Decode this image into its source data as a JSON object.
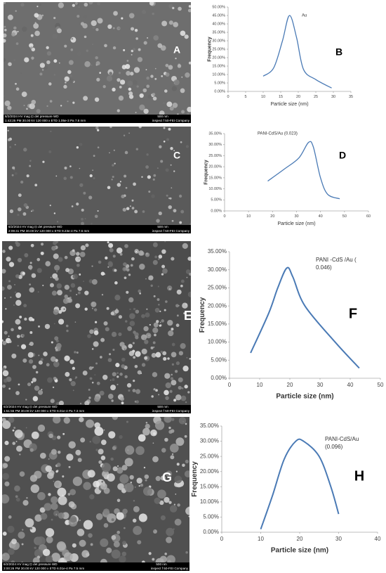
{
  "images": [
    {
      "label": "A",
      "info": [
        "6/2/2024   HV   mag ⊡  det  pressure  WD",
        "1:43:25 PM 30.00 kV 120 000 x ETD 1.05e-3 Pa 7.8 mm"
      ],
      "scale": "500 nm",
      "company": "inspect f 50-FEI Company"
    },
    {
      "label": "C",
      "info": [
        "6/2/2024   HV   mag ⊡  det  pressure  WD",
        "2:09:41 PM 30.00 kV 120 000 x ETD 9.23e-4 Pa 7.6 mm"
      ],
      "scale": "500 nm",
      "company": "inspect f 50-FEI Company"
    },
    {
      "label": "E",
      "info": [
        "6/2/2024   HV   mag ⊡  det  pressure  WD",
        "1:51:55 PM 30.00 kV 120 000 x ETD 6.01e-4 Pa 7.3 mm"
      ],
      "scale": "500 nm",
      "company": "inspect f 50-FEI Company"
    },
    {
      "label": "G",
      "info": [
        "6/2/2024   HV   mag ⊡  det  pressure  WD",
        "3:00:26 PM 30.00 kV 120 000 x ETD 6.01e-4 Pa 7.5 mm"
      ],
      "scale": "500 nm",
      "company": "inspect f 50-FEI Company"
    }
  ],
  "chart_data": [
    {
      "type": "line",
      "panel_label": "B",
      "annotation": [
        "Au"
      ],
      "xlabel": "Particle size (nm)",
      "ylabel": "Frequency",
      "color": "#4a7ab5",
      "x": [
        10,
        13,
        15.5,
        17.5,
        19.5,
        21.5,
        25,
        29.5
      ],
      "values": [
        9,
        14,
        30,
        45,
        32,
        13,
        7,
        2
      ],
      "xlim": [
        0,
        35
      ],
      "xticks": [
        0,
        5,
        10,
        15,
        20,
        25,
        30,
        35
      ],
      "ylim": [
        0,
        50
      ],
      "yticks": [
        {
          "value": 0,
          "label": "0.00%"
        },
        {
          "value": 5,
          "label": "5.00%"
        },
        {
          "value": 10,
          "label": "10.00%"
        },
        {
          "value": 15,
          "label": "15.00%"
        },
        {
          "value": 20,
          "label": "20.00%"
        },
        {
          "value": 25,
          "label": "25.00%"
        },
        {
          "value": 30,
          "label": "30.00%"
        },
        {
          "value": 35,
          "label": "35.00%"
        },
        {
          "value": 40,
          "label": "40.00%"
        },
        {
          "value": 45,
          "label": "45.00%"
        },
        {
          "value": 50,
          "label": "50.00%"
        }
      ]
    },
    {
      "type": "line",
      "panel_label": "D",
      "annotation": [
        "PANI-CdS/Au (0.023)"
      ],
      "xlabel": "Particle size (nm)",
      "ylabel": "Frequency",
      "color": "#4a7ab5",
      "x": [
        18,
        25,
        31,
        35,
        37,
        40,
        43,
        48
      ],
      "values": [
        13.5,
        19,
        24,
        31,
        29,
        15,
        7.5,
        5.5
      ],
      "xlim": [
        0,
        60
      ],
      "xticks": [
        0,
        10,
        20,
        30,
        40,
        50,
        60
      ],
      "ylim": [
        0,
        35
      ],
      "yticks": [
        {
          "value": 0,
          "label": "0.00%"
        },
        {
          "value": 5,
          "label": "5.00%"
        },
        {
          "value": 10,
          "label": "10.00%"
        },
        {
          "value": 15,
          "label": "15.00%"
        },
        {
          "value": 20,
          "label": "20.00%"
        },
        {
          "value": 25,
          "label": "25.00%"
        },
        {
          "value": 30,
          "label": "30.00%"
        },
        {
          "value": 35,
          "label": "35.00%"
        }
      ]
    },
    {
      "type": "line",
      "panel_label": "F",
      "annotation": [
        "PANI -CdS /Au (",
        "0.046)"
      ],
      "xlabel": "Particle size (nm)",
      "ylabel": "Frequency",
      "color": "#4a7ab5",
      "x": [
        7,
        13,
        16,
        19,
        21,
        25,
        35,
        43
      ],
      "values": [
        7,
        18,
        25,
        30.5,
        28,
        20,
        10,
        2.8
      ],
      "xlim": [
        0,
        50
      ],
      "xticks": [
        0,
        10,
        20,
        30,
        40,
        50
      ],
      "ylim": [
        0,
        35
      ],
      "yticks": [
        {
          "value": 0,
          "label": "0.00%"
        },
        {
          "value": 5,
          "label": "5.00%"
        },
        {
          "value": 10,
          "label": "10.00%"
        },
        {
          "value": 15,
          "label": "15.00%"
        },
        {
          "value": 20,
          "label": "20.00%"
        },
        {
          "value": 25,
          "label": "25.00%"
        },
        {
          "value": 30,
          "label": "30.00%"
        },
        {
          "value": 35,
          "label": "35.00%"
        }
      ]
    },
    {
      "type": "line",
      "panel_label": "H",
      "annotation": [
        "PANI-CdS/Au",
        "(0.096)"
      ],
      "xlabel": "Particle size (nm)",
      "ylabel": "Frequency",
      "color": "#4a7ab5",
      "x": [
        10,
        13,
        16,
        19,
        21,
        25,
        28,
        30
      ],
      "values": [
        1,
        12,
        24,
        30,
        30,
        25,
        15,
        6
      ],
      "xlim": [
        0,
        40
      ],
      "xticks": [
        0,
        10,
        20,
        30,
        40
      ],
      "ylim": [
        0,
        35
      ],
      "yticks": [
        {
          "value": 0,
          "label": "0.00%"
        },
        {
          "value": 5,
          "label": "5.00%"
        },
        {
          "value": 10,
          "label": "10.00%"
        },
        {
          "value": 15,
          "label": "15.00%"
        },
        {
          "value": 20,
          "label": "20.00%"
        },
        {
          "value": 25,
          "label": "25.00%"
        },
        {
          "value": 30,
          "label": "30.00%"
        },
        {
          "value": 35,
          "label": "35.00%"
        }
      ]
    }
  ]
}
